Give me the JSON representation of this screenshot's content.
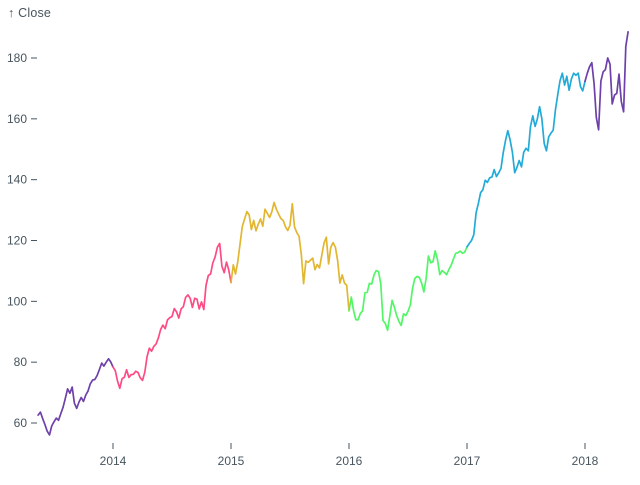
{
  "header": {
    "y_axis_title": "↑ Close"
  },
  "chart_data": {
    "type": "line",
    "title": "",
    "xlabel": "",
    "ylabel": "Close",
    "grid": false,
    "legend": "none",
    "background": "#ffffff",
    "axis_text_color": "#47555f",
    "x_tick_labels": [
      "2014",
      "2015",
      "2016",
      "2017",
      "2018"
    ],
    "x_tick_years": [
      2014,
      2015,
      2016,
      2017,
      2018
    ],
    "y_tick_labels": [
      "60",
      "80",
      "100",
      "120",
      "140",
      "160",
      "180"
    ],
    "y_tick_values": [
      60,
      80,
      100,
      120,
      140,
      160,
      180
    ],
    "x_domain": [
      2013.3654,
      2018.3654
    ],
    "y_domain": [
      60,
      180
    ],
    "color_by_year": {
      "2013": "#6e40aa",
      "2014": "#fe4b83",
      "2015": "#e2b72f",
      "2016": "#52f667",
      "2017": "#23abd8",
      "2018": "#6e40aa"
    },
    "series": [
      {
        "name": "Close",
        "start_year": 2013.3654,
        "points_per_year": 52,
        "values": [
          62.6,
          63.6,
          61.4,
          59.5,
          57.3,
          56.1,
          59.0,
          60.4,
          61.6,
          60.9,
          63.1,
          65.2,
          68.1,
          71.2,
          69.8,
          71.8,
          66.5,
          64.8,
          66.9,
          68.4,
          67.1,
          69.2,
          70.5,
          72.9,
          74.1,
          74.3,
          75.6,
          77.6,
          79.7,
          78.7,
          80.0,
          81.1,
          80.1,
          78.4,
          77.2,
          73.8,
          71.4,
          74.6,
          75.0,
          77.5,
          75.0,
          75.9,
          76.0,
          77.0,
          76.6,
          74.9,
          74.0,
          76.7,
          81.7,
          84.6,
          83.6,
          85.2,
          86.0,
          88.0,
          90.8,
          92.2,
          91.0,
          93.9,
          94.6,
          95.0,
          97.6,
          96.6,
          94.5,
          97.5,
          98.2,
          101.3,
          102.1,
          101.0,
          98.0,
          101.0,
          100.7,
          97.5,
          99.8,
          97.3,
          105.2,
          108.5,
          109.0,
          112.6,
          114.6,
          117.8,
          119.0,
          111.6,
          109.4,
          112.9,
          110.4,
          106.2,
          112.0,
          109.0,
          113.1,
          119.0,
          124.6,
          127.1,
          129.5,
          128.4,
          123.6,
          126.6,
          123.2,
          125.3,
          127.1,
          124.7,
          130.3,
          128.9,
          127.6,
          129.4,
          132.5,
          130.3,
          128.6,
          127.2,
          126.6,
          124.5,
          123.3,
          125.0,
          132.1,
          124.5,
          122.6,
          121.3,
          115.5,
          105.8,
          113.3,
          112.8,
          113.5,
          114.2,
          110.4,
          112.1,
          111.0,
          115.2,
          119.1,
          121.1,
          112.3,
          117.8,
          119.3,
          117.8,
          113.2,
          106.0,
          108.7,
          106.0,
          105.3,
          96.9,
          101.4,
          97.1,
          94.0,
          93.9,
          96.0,
          96.9,
          102.8,
          103.0,
          105.9,
          105.7,
          108.7,
          110.1,
          109.8,
          105.7,
          93.7,
          92.7,
          90.5,
          95.2,
          100.3,
          98.0,
          95.3,
          93.4,
          92.1,
          95.9,
          95.3,
          96.7,
          98.8,
          104.2,
          107.5,
          108.2,
          107.9,
          106.0,
          103.1,
          107.7,
          114.9,
          112.7,
          113.0,
          116.6,
          113.7,
          108.8,
          110.1,
          109.5,
          108.8,
          110.4,
          111.8,
          113.9,
          115.8,
          116.0,
          116.5,
          115.8,
          116.2,
          117.9,
          119.0,
          120.0,
          121.9,
          129.1,
          132.1,
          135.7,
          136.7,
          139.8,
          139.1,
          140.6,
          140.9,
          143.3,
          141.0,
          142.3,
          143.7,
          149.0,
          153.0,
          156.1,
          153.1,
          149.0,
          142.3,
          144.0,
          146.3,
          144.2,
          149.0,
          150.3,
          149.5,
          157.5,
          161.0,
          157.5,
          159.9,
          164.0,
          159.9,
          151.9,
          149.5,
          154.1,
          155.3,
          156.3,
          163.1,
          168.1,
          172.5,
          175.0,
          171.1,
          174.0,
          169.4,
          173.1,
          175.0,
          174.3,
          175.0,
          170.6,
          169.2,
          172.3,
          175.0,
          177.1,
          178.5,
          171.5,
          160.5,
          156.4,
          172.4,
          175.5,
          176.2,
          180.0,
          178.0,
          164.9,
          167.8,
          168.4,
          174.7,
          165.7,
          162.3,
          183.8,
          188.6
        ]
      }
    ]
  }
}
